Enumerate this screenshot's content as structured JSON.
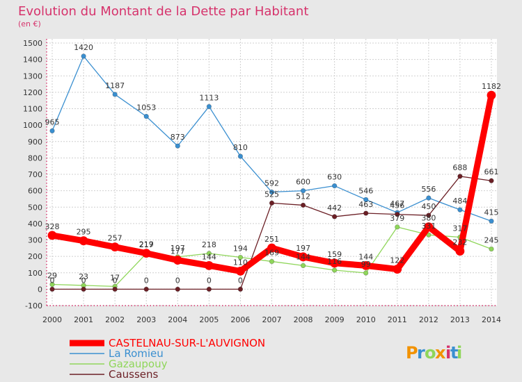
{
  "chart_data": {
    "type": "line",
    "title": "Evolution du Montant de la Dette par Habitant",
    "subtitle": "(en €)",
    "x": [
      "2000",
      "2001",
      "2002",
      "2003",
      "2004",
      "2005",
      "2006",
      "2007",
      "2008",
      "2009",
      "2010",
      "2011",
      "2012",
      "2013",
      "2014"
    ],
    "ylim": [
      -100,
      1500
    ],
    "yticks": [
      -100,
      0,
      100,
      200,
      300,
      400,
      500,
      600,
      700,
      800,
      900,
      1000,
      1100,
      1200,
      1300,
      1400,
      1500
    ],
    "grid": true,
    "legend_position": "bottom-left",
    "series": [
      {
        "name": "La Romieu",
        "color": "#3a8fd0",
        "values": [
          965,
          1420,
          1187,
          1053,
          873,
          1113,
          810,
          592,
          600,
          630,
          546,
          467,
          556,
          484,
          415
        ],
        "labels": [
          "965",
          "1420",
          "1187",
          "1053",
          "873",
          "1113",
          "810",
          "592",
          "600",
          "630",
          "546",
          "467",
          "556",
          "484",
          "415"
        ]
      },
      {
        "name": "Gazaupouy",
        "color": "#8fd65a",
        "values": [
          29,
          23,
          17,
          217,
          197,
          218,
          194,
          169,
          144,
          116,
          99,
          379,
          331,
          317,
          245
        ],
        "labels": [
          "29",
          "23",
          "17",
          "217",
          "197",
          "218",
          "194",
          "169",
          "144",
          "116",
          "99",
          "379",
          "331",
          "317",
          "245"
        ]
      },
      {
        "name": "Caussens",
        "color": "#6b1f25",
        "values": [
          0,
          0,
          0,
          0,
          0,
          0,
          0,
          525,
          512,
          442,
          463,
          456,
          450,
          688,
          661
        ],
        "labels": [
          "0",
          "0",
          "0",
          "0",
          "0",
          "0",
          "0",
          "525",
          "512",
          "442",
          "463",
          "456",
          "450",
          "688",
          "661"
        ]
      },
      {
        "name": "CASTELNAU-SUR-L'AUVIGNON",
        "color": "#ff0000",
        "values": [
          328,
          295,
          257,
          219,
          177,
          144,
          110,
          251,
          197,
          159,
          144,
          122,
          380,
          232,
          1182
        ],
        "labels": [
          "328",
          "295",
          "257",
          "219",
          "177",
          "144",
          "110",
          "251",
          "197",
          "159",
          "144",
          "122",
          "380",
          "232",
          "1182"
        ]
      }
    ],
    "legend": [
      {
        "name": "CASTELNAU-SUR-L'AUVIGNON",
        "color": "#ff0000"
      },
      {
        "name": "La Romieu",
        "color": "#3a8fd0"
      },
      {
        "name": "Gazaupouy",
        "color": "#8fd65a"
      },
      {
        "name": "Caussens",
        "color": "#6b1f25"
      }
    ]
  },
  "brand": {
    "logo_text": "Proxiti",
    "colors": [
      "#f29200",
      "#3a8fd0",
      "#8fd65a",
      "#f29200",
      "#d6336c",
      "#3a8fd0",
      "#8fd65a"
    ]
  }
}
